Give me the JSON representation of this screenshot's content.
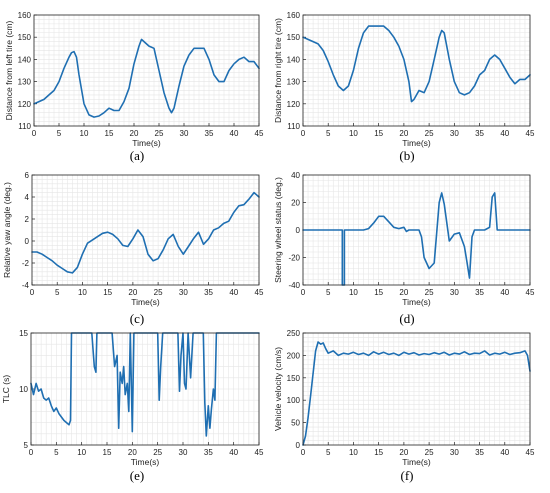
{
  "line_color": "#1f6fb2",
  "chart_data": [
    {
      "type": "line",
      "panel_label": "(a)",
      "xlabel": "Time(s)",
      "ylabel": "Distance from left tire (cm)",
      "xlim": [
        0,
        45
      ],
      "ylim": [
        110,
        160
      ],
      "xticks": [
        "0",
        "5",
        "10",
        "15",
        "20",
        "25",
        "30",
        "35",
        "40",
        "45"
      ],
      "yticks": [
        "110",
        "120",
        "130",
        "140",
        "150",
        "160"
      ],
      "grid": true,
      "series": [
        {
          "x": [
            0,
            1,
            2,
            3,
            4,
            5,
            6,
            7,
            7.5,
            8,
            8.5,
            9,
            10,
            11,
            12,
            13,
            14,
            15,
            16,
            17,
            18,
            19,
            20,
            21,
            21.5,
            22,
            23,
            24,
            25,
            26,
            27,
            27.5,
            28,
            29,
            30,
            31,
            32,
            33,
            34,
            35,
            36,
            37,
            38,
            39,
            40,
            41,
            42,
            43,
            44,
            45
          ],
          "y": [
            120,
            121,
            122,
            124,
            126,
            130,
            136,
            141,
            143,
            143.5,
            141,
            133,
            120,
            115,
            114,
            114.5,
            116,
            118,
            117,
            117,
            121,
            127,
            138,
            146,
            149,
            148,
            146,
            145,
            135,
            125,
            118,
            116,
            118,
            128,
            137,
            142,
            145,
            145,
            145,
            140,
            133,
            130,
            130,
            135,
            138,
            140,
            141,
            139,
            139,
            136
          ]
        }
      ]
    },
    {
      "type": "line",
      "panel_label": "(b)",
      "xlabel": "Time(s)",
      "ylabel": "Distance from right tire (cm)",
      "xlim": [
        0,
        45
      ],
      "ylim": [
        110,
        160
      ],
      "xticks": [
        "0",
        "5",
        "10",
        "15",
        "20",
        "25",
        "30",
        "35",
        "40",
        "45"
      ],
      "yticks": [
        "110",
        "120",
        "130",
        "140",
        "150",
        "160"
      ],
      "grid": true,
      "series": [
        {
          "x": [
            0,
            1,
            2,
            3,
            4,
            5,
            6,
            7,
            8,
            9,
            10,
            11,
            12,
            13,
            14,
            15,
            16,
            17,
            18,
            19,
            20,
            21,
            21.5,
            22,
            23,
            24,
            25,
            26,
            27,
            27.5,
            28,
            29,
            30,
            31,
            32,
            33,
            34,
            35,
            36,
            37,
            38,
            39,
            40,
            41,
            42,
            43,
            44,
            45
          ],
          "y": [
            150,
            149,
            148,
            147,
            144,
            139,
            133,
            128,
            126,
            128,
            135,
            145,
            152,
            155,
            155,
            155,
            155,
            153,
            150,
            146,
            140,
            130,
            121,
            122,
            126,
            125,
            130,
            140,
            150,
            153,
            152,
            140,
            130,
            125,
            124,
            125,
            128,
            133,
            135,
            140,
            142,
            140,
            136,
            132,
            129,
            131,
            131,
            133
          ]
        }
      ]
    },
    {
      "type": "line",
      "panel_label": "(c)",
      "xlabel": "Time(s)",
      "ylabel": "Relative yaw angle (deg.)",
      "xlim": [
        0,
        45
      ],
      "ylim": [
        -4,
        6
      ],
      "xticks": [
        "0",
        "5",
        "10",
        "15",
        "20",
        "25",
        "30",
        "35",
        "40",
        "45"
      ],
      "yticks": [
        "-4",
        "-2",
        "0",
        "2",
        "4",
        "6"
      ],
      "grid": true,
      "series": [
        {
          "x": [
            0,
            1,
            2,
            3,
            4,
            5,
            6,
            7,
            8,
            9,
            10,
            11,
            12,
            13,
            14,
            15,
            16,
            17,
            18,
            19,
            20,
            21,
            22,
            23,
            24,
            25,
            26,
            27,
            28,
            29,
            30,
            31,
            32,
            33,
            34,
            35,
            36,
            37,
            38,
            39,
            40,
            41,
            42,
            43,
            44,
            45
          ],
          "y": [
            -1,
            -1,
            -1.2,
            -1.5,
            -1.8,
            -2.2,
            -2.5,
            -2.8,
            -2.9,
            -2.4,
            -1.2,
            -0.2,
            0.1,
            0.4,
            0.7,
            0.8,
            0.6,
            0.2,
            -0.4,
            -0.5,
            0.2,
            1.0,
            0.4,
            -1.2,
            -1.8,
            -1.6,
            -0.8,
            0.2,
            0.6,
            -0.5,
            -1.2,
            -0.5,
            0.2,
            0.8,
            -0.3,
            0.2,
            1.0,
            1.2,
            1.6,
            1.8,
            2.6,
            3.2,
            3.3,
            3.8,
            4.4,
            4.0
          ]
        }
      ]
    },
    {
      "type": "line",
      "panel_label": "(d)",
      "xlabel": "Time(s)",
      "ylabel": "Steering wheel status (deg.)",
      "xlim": [
        0,
        45
      ],
      "ylim": [
        -40,
        40
      ],
      "xticks": [
        "0",
        "5",
        "10",
        "15",
        "20",
        "25",
        "30",
        "35",
        "40",
        "45"
      ],
      "yticks": [
        "-40",
        "-20",
        "0",
        "20",
        "40"
      ],
      "grid": true,
      "series": [
        {
          "x": [
            0,
            4,
            7.8,
            7.8,
            8.2,
            8.2,
            10,
            12,
            13,
            14,
            15,
            16,
            17,
            18,
            19,
            20,
            20.5,
            21,
            22,
            23,
            23.5,
            24,
            25,
            26,
            27,
            27.5,
            28,
            29,
            30,
            31,
            32,
            32.5,
            33,
            33.5,
            34,
            35,
            36,
            37,
            37.5,
            38,
            38.5,
            39,
            40,
            42,
            45
          ],
          "y": [
            0,
            0,
            0,
            -40,
            -40,
            0,
            0,
            0,
            1,
            5,
            10,
            10,
            6,
            2,
            1,
            2,
            -1,
            0,
            0,
            0,
            -5,
            -20,
            -28,
            -24,
            20,
            27,
            19,
            -8,
            -3,
            -2,
            -12,
            -23,
            -35,
            -5,
            0,
            0,
            0,
            2,
            24,
            27,
            0,
            0,
            0,
            0,
            0
          ]
        }
      ]
    },
    {
      "type": "line",
      "panel_label": "(e)",
      "xlabel": "Time(s)",
      "ylabel": "TLC (s)",
      "xlim": [
        0,
        45
      ],
      "ylim": [
        5,
        15
      ],
      "xticks": [
        "0",
        "5",
        "10",
        "15",
        "20",
        "25",
        "30",
        "35",
        "40",
        "45"
      ],
      "yticks": [
        "5",
        "10",
        "15"
      ],
      "grid": true,
      "series": [
        {
          "x": [
            0,
            0.5,
            1,
            1.5,
            2,
            2.5,
            3,
            3.5,
            4,
            4.5,
            5,
            5.5,
            6,
            6.5,
            7,
            7.5,
            7.8,
            8,
            12,
            12.5,
            12.8,
            13,
            16,
            16.5,
            17,
            17.3,
            17.6,
            18,
            18.3,
            18.6,
            19,
            19.3,
            19.6,
            20,
            20.3,
            21,
            25,
            25.3,
            25.6,
            26,
            29,
            29.3,
            29.6,
            30,
            30.3,
            30.6,
            31,
            31.5,
            32,
            34,
            34.3,
            34.6,
            35,
            35.3,
            35.6,
            36,
            36.3,
            36.6,
            37,
            45
          ],
          "y": [
            10.5,
            9.5,
            10.5,
            9.8,
            10,
            9.2,
            9,
            9.2,
            8.5,
            8,
            8.3,
            7.8,
            7.5,
            7.2,
            7,
            6.8,
            7.2,
            15,
            15,
            12,
            11.5,
            15,
            15,
            12,
            13,
            6.5,
            11.5,
            10.5,
            12,
            9.5,
            10.5,
            8,
            15,
            6.2,
            15,
            15,
            15,
            9,
            12,
            15,
            15,
            9.8,
            13,
            15,
            10.5,
            10,
            15,
            11,
            15,
            15,
            8.8,
            5.8,
            8.5,
            6.5,
            8.2,
            10,
            9,
            15,
            15,
            15
          ]
        }
      ]
    },
    {
      "type": "line",
      "panel_label": "(f)",
      "xlabel": "Time(s)",
      "ylabel": "Vehicle velocity (cm/s)",
      "xlim": [
        0,
        45
      ],
      "ylim": [
        0,
        250
      ],
      "xticks": [
        "0",
        "5",
        "10",
        "15",
        "20",
        "25",
        "30",
        "35",
        "40",
        "45"
      ],
      "yticks": [
        "0",
        "50",
        "100",
        "150",
        "200",
        "250"
      ],
      "grid": true,
      "series": [
        {
          "x": [
            0,
            0.5,
            1,
            1.5,
            2,
            2.5,
            3,
            3.5,
            4,
            4.5,
            5,
            6,
            7,
            8,
            9,
            10,
            11,
            12,
            13,
            14,
            15,
            16,
            17,
            18,
            19,
            20,
            21,
            22,
            23,
            24,
            25,
            26,
            27,
            28,
            29,
            30,
            31,
            32,
            33,
            34,
            35,
            36,
            37,
            38,
            39,
            40,
            41,
            42,
            43,
            44,
            44.5,
            45
          ],
          "y": [
            0,
            20,
            60,
            110,
            160,
            210,
            230,
            225,
            228,
            215,
            205,
            210,
            200,
            205,
            203,
            207,
            202,
            205,
            200,
            208,
            203,
            207,
            202,
            205,
            200,
            207,
            203,
            206,
            201,
            204,
            202,
            206,
            203,
            207,
            201,
            205,
            203,
            208,
            202,
            205,
            204,
            210,
            201,
            205,
            203,
            207,
            202,
            205,
            206,
            210,
            200,
            165
          ]
        }
      ]
    }
  ]
}
